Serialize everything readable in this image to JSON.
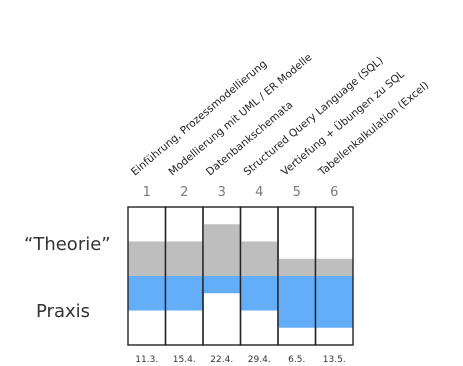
{
  "row_labels": {
    "theory": "“Theorie”",
    "praxis": "Praxis"
  },
  "colors": {
    "theory": "#bebebe",
    "praxis": "#63adf9",
    "cell_border": "#222222",
    "background": "#ffffff",
    "rotated_text": "#222222",
    "number_text": "#7a7a7a"
  },
  "chart_data": {
    "type": "bar",
    "categories": [
      "1",
      "2",
      "3",
      "4",
      "5",
      "6"
    ],
    "topics": [
      "Einführung, Prozessmodellierung",
      "Modellierung mit UML / ER Modelle",
      "Datenbankschemata",
      "Structured Query Language (SQL)",
      "Vertiefung + Übungen zu SQL",
      "Tabellenkalkulation (Excel)"
    ],
    "dates": [
      "11.3.",
      "15.4.",
      "22.4.",
      "29.4.",
      "6.5.",
      "13.5."
    ],
    "series": [
      {
        "key": "theory",
        "values": [
          0.2,
          0.2,
          0.3,
          0.2,
          0.1,
          0.1
        ]
      },
      {
        "key": "praxis",
        "values": [
          0.2,
          0.2,
          0.1,
          0.2,
          0.3,
          0.3
        ]
      }
    ],
    "ylim": [
      -0.4,
      0.4
    ]
  }
}
